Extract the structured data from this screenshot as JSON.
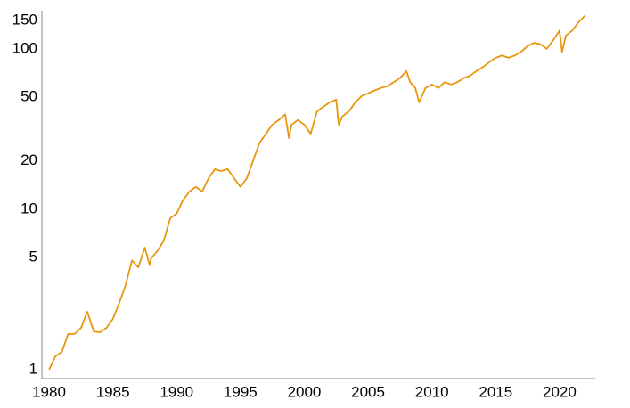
{
  "chart_data": {
    "type": "line",
    "log_y": true,
    "grid": false,
    "xlim": [
      1979.44,
      2022.8
    ],
    "ylim": [
      0.88,
      173
    ],
    "xticks": [
      1980,
      1985,
      1990,
      1995,
      2000,
      2005,
      2010,
      2015,
      2020
    ],
    "yticks": [
      1,
      5,
      10,
      20,
      50,
      100,
      150
    ],
    "x": [
      1980,
      1980.5,
      1981,
      1981.5,
      1982,
      1982.5,
      1983,
      1983.5,
      1984,
      1984.5,
      1985,
      1985.5,
      1986,
      1986.5,
      1987,
      1987.5,
      1987.9,
      1988,
      1988.5,
      1989,
      1989.5,
      1990,
      1990.5,
      1991,
      1991.5,
      1992,
      1992.5,
      1993,
      1993.5,
      1994,
      1994.5,
      1995,
      1995.5,
      1996,
      1996.5,
      1997,
      1997.5,
      1998,
      1998.5,
      1998.8,
      1999,
      1999.5,
      2000,
      2000.5,
      2001,
      2001.5,
      2002,
      2002.5,
      2002.7,
      2003,
      2003.5,
      2004,
      2004.5,
      2005,
      2005.5,
      2006,
      2006.5,
      2007,
      2007.5,
      2008,
      2008.3,
      2008.7,
      2009,
      2009.5,
      2010,
      2010.5,
      2011,
      2011.5,
      2012,
      2012.5,
      2013,
      2013.5,
      2014,
      2014.5,
      2015,
      2015.5,
      2016,
      2016.5,
      2017,
      2017.5,
      2018,
      2018.5,
      2019,
      2019.5,
      2020,
      2020.2,
      2020.5,
      2021,
      2021.5,
      2022
    ],
    "series": [
      {
        "color": "#e8960c",
        "values": [
          1.0,
          1.21,
          1.29,
          1.67,
          1.67,
          1.82,
          2.3,
          1.73,
          1.71,
          1.82,
          2.07,
          2.6,
          3.37,
          4.8,
          4.35,
          5.77,
          4.47,
          4.95,
          5.5,
          6.4,
          8.8,
          9.4,
          11.4,
          12.9,
          13.8,
          12.9,
          15.6,
          17.8,
          17.3,
          17.8,
          15.6,
          13.8,
          15.6,
          20.2,
          26,
          29.6,
          33.7,
          36,
          39,
          27.8,
          33.7,
          36,
          33.7,
          29.6,
          40.8,
          43.6,
          46.4,
          48.3,
          33.7,
          38,
          40.8,
          46.4,
          50.8,
          52.8,
          55,
          57,
          58.5,
          62,
          65.7,
          72.8,
          62,
          57,
          46.4,
          57,
          60,
          57,
          62,
          60,
          62,
          65.7,
          68,
          72.8,
          77,
          82.7,
          88,
          91,
          88,
          91,
          96,
          104,
          109,
          107,
          100,
          113,
          130,
          96,
          121,
          130,
          147,
          161
        ]
      }
    ]
  }
}
